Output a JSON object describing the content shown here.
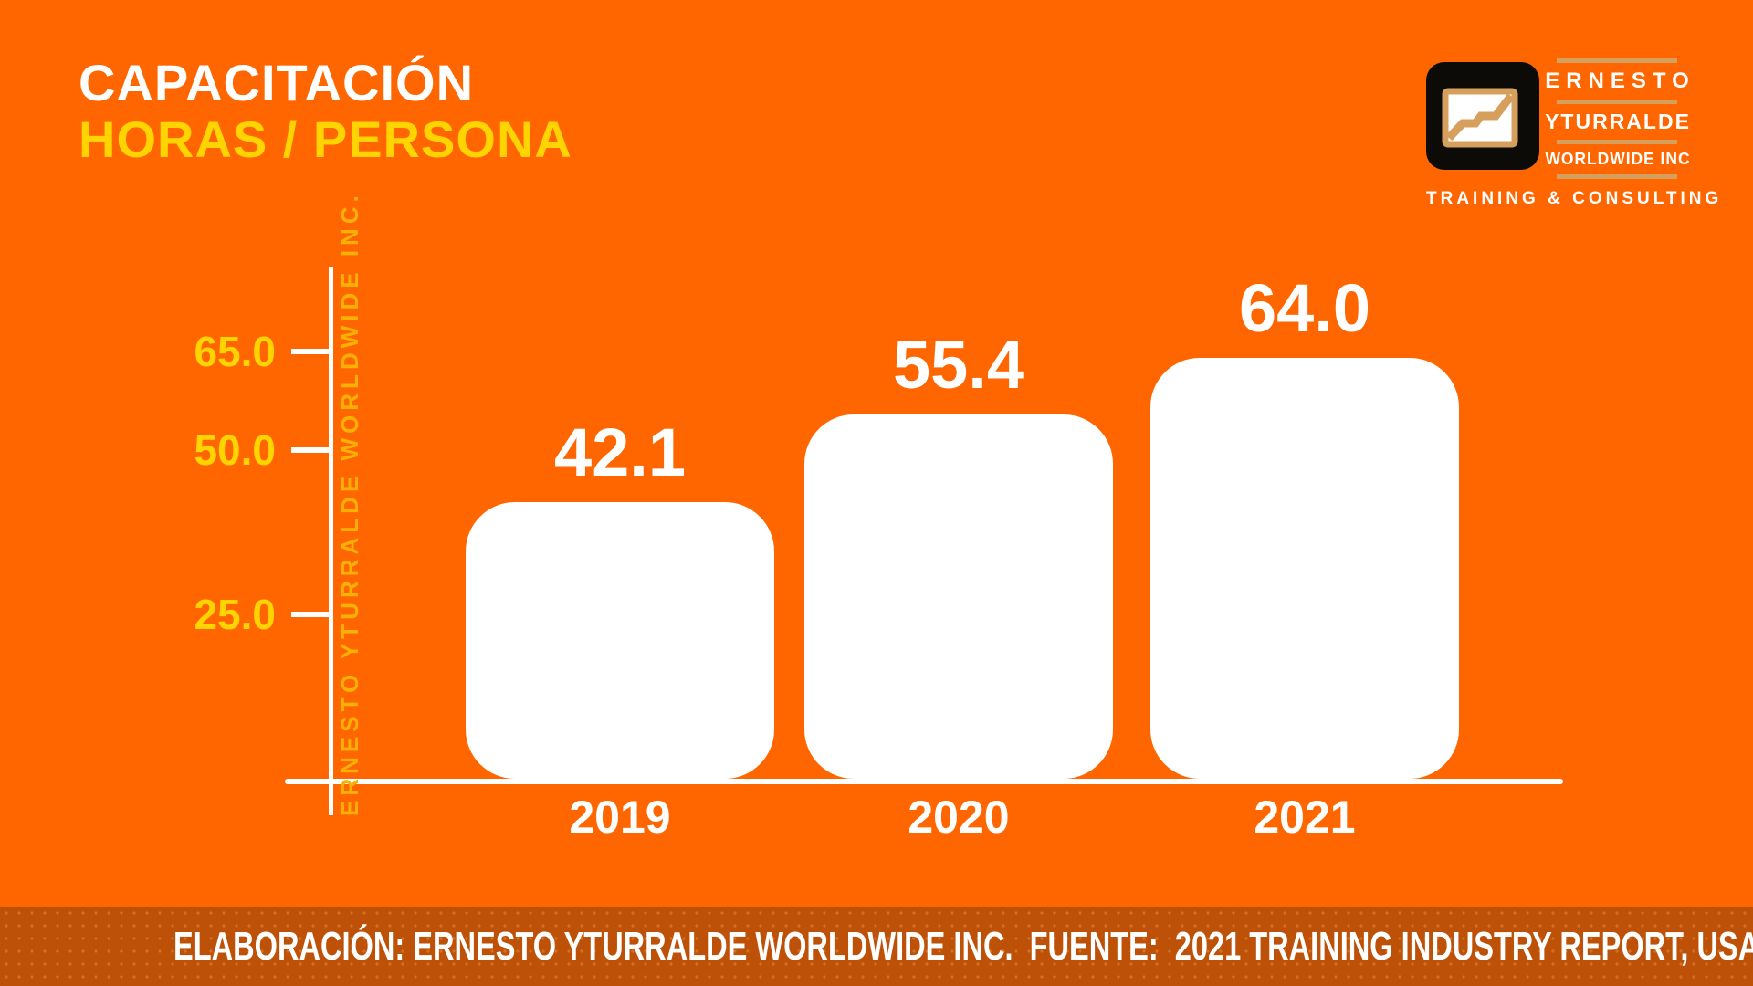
{
  "title": {
    "line1": "CAPACITACIÓN",
    "line2": "HORAS / PERSONA"
  },
  "logo": {
    "icon": "line-chart-icon",
    "name_lines": [
      "ERNESTO",
      "YTURRALDE",
      "WORLDWIDE INC"
    ],
    "tagline": "TRAINING & CONSULTING"
  },
  "axis_watermark": "ERNESTO YTURRALDE WORLDWIDE INC.",
  "footer": {
    "text": "ELABORACIÓN: ERNESTO YTURRALDE WORLDWIDE INC.  FUENTE:  2021 TRAINING INDUSTRY REPORT, USA"
  },
  "colors": {
    "background": "#FF6600",
    "footer_background": "#BD5108",
    "yellow": "#FFD400",
    "amber_watermark": "#F8B005",
    "logo_tan": "#D6A05C",
    "bar_fill": "#FFFFFF"
  },
  "chart_data": {
    "type": "bar",
    "title": "CAPACITACIÓN HORAS / PERSONA",
    "categories": [
      "2019",
      "2020",
      "2021"
    ],
    "values": [
      42.1,
      55.4,
      64.0
    ],
    "value_labels": [
      "42.1",
      "55.4",
      "64.0"
    ],
    "yticks": [
      25.0,
      50.0,
      65.0
    ],
    "ytick_labels": [
      "25.0",
      "50.0",
      "65.0"
    ],
    "ylim": [
      0,
      78
    ],
    "xlabel": "",
    "ylabel": "",
    "grid": false,
    "legend": null,
    "bar_color": "#FFFFFF",
    "label_color": "#FFFFFF"
  }
}
